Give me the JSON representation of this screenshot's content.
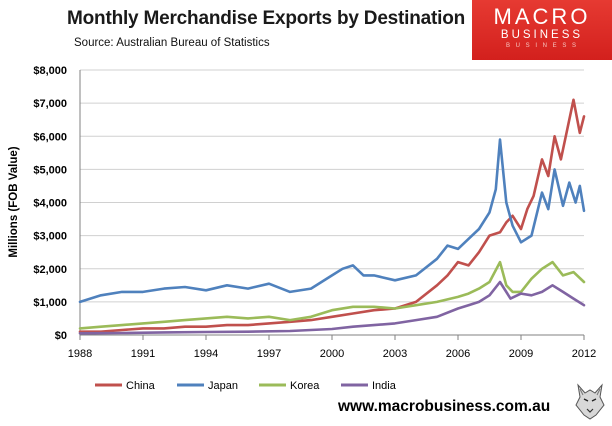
{
  "branding": {
    "logo_main": "MACRO",
    "logo_sub": "BUSINESS",
    "logo_tagline": "B U S I N E S S",
    "website": "www.macrobusiness.com.au",
    "logo_color": "#d9261f"
  },
  "chart_data": {
    "type": "line",
    "title": "Monthly Merchandise Exports by Destination",
    "subtitle": "Source:  Australian Bureau of Statistics",
    "xlabel": "",
    "ylabel": "Millions (FOB Value)",
    "xlim": [
      1988,
      2012
    ],
    "ylim": [
      0,
      8000
    ],
    "x_ticks": [
      1988,
      1991,
      1994,
      1997,
      2000,
      2003,
      2006,
      2009,
      2012
    ],
    "y_ticks": [
      0,
      1000,
      2000,
      3000,
      4000,
      5000,
      6000,
      7000,
      8000
    ],
    "y_tick_labels": [
      "$0",
      "$1,000",
      "$2,000",
      "$3,000",
      "$4,000",
      "$5,000",
      "$6,000",
      "$7,000",
      "$8,000"
    ],
    "grid": "horizontal",
    "legend_position": "bottom",
    "series": [
      {
        "name": "China",
        "color": "#c0504d",
        "x": [
          1988.0,
          1989.0,
          1990.0,
          1991.0,
          1992.0,
          1993.0,
          1994.0,
          1995.0,
          1996.0,
          1997.0,
          1998.0,
          1999.0,
          2000.0,
          2001.0,
          2002.0,
          2003.0,
          2004.0,
          2005.0,
          2005.5,
          2006.0,
          2006.5,
          2007.0,
          2007.5,
          2008.0,
          2008.3,
          2008.6,
          2009.0,
          2009.3,
          2009.6,
          2010.0,
          2010.3,
          2010.6,
          2010.9,
          2011.2,
          2011.5,
          2011.8,
          2012.0
        ],
        "y": [
          100,
          100,
          150,
          200,
          200,
          250,
          250,
          300,
          300,
          350,
          400,
          450,
          550,
          650,
          750,
          800,
          1000,
          1500,
          1800,
          2200,
          2100,
          2500,
          3000,
          3100,
          3400,
          3600,
          3200,
          3800,
          4200,
          5300,
          4800,
          6000,
          5300,
          6200,
          7100,
          6100,
          6600
        ]
      },
      {
        "name": "Japan",
        "color": "#4f81bd",
        "x": [
          1988.0,
          1989.0,
          1990.0,
          1991.0,
          1992.0,
          1993.0,
          1994.0,
          1995.0,
          1996.0,
          1997.0,
          1998.0,
          1999.0,
          1999.5,
          2000.0,
          2000.5,
          2001.0,
          2001.5,
          2002.0,
          2003.0,
          2004.0,
          2005.0,
          2005.5,
          2006.0,
          2006.5,
          2007.0,
          2007.5,
          2007.8,
          2008.0,
          2008.3,
          2008.6,
          2009.0,
          2009.5,
          2010.0,
          2010.3,
          2010.6,
          2011.0,
          2011.3,
          2011.6,
          2011.8,
          2012.0
        ],
        "y": [
          1000,
          1200,
          1300,
          1300,
          1400,
          1450,
          1350,
          1500,
          1400,
          1550,
          1300,
          1400,
          1600,
          1800,
          2000,
          2100,
          1800,
          1800,
          1650,
          1800,
          2300,
          2700,
          2600,
          2900,
          3200,
          3700,
          4400,
          5900,
          4000,
          3300,
          2800,
          3000,
          4300,
          3800,
          5000,
          3900,
          4600,
          4000,
          4500,
          3750
        ]
      },
      {
        "name": "Korea",
        "color": "#9bbb59",
        "x": [
          1988.0,
          1989.0,
          1990.0,
          1991.0,
          1992.0,
          1993.0,
          1994.0,
          1995.0,
          1996.0,
          1997.0,
          1998.0,
          1999.0,
          2000.0,
          2001.0,
          2002.0,
          2003.0,
          2004.0,
          2005.0,
          2006.0,
          2006.5,
          2007.0,
          2007.5,
          2008.0,
          2008.3,
          2008.6,
          2009.0,
          2009.5,
          2010.0,
          2010.5,
          2011.0,
          2011.5,
          2012.0
        ],
        "y": [
          200,
          250,
          300,
          350,
          400,
          450,
          500,
          550,
          500,
          550,
          450,
          550,
          750,
          850,
          850,
          800,
          900,
          1000,
          1150,
          1250,
          1400,
          1600,
          2200,
          1500,
          1300,
          1300,
          1700,
          2000,
          2200,
          1800,
          1900,
          1600
        ]
      },
      {
        "name": "India",
        "color": "#8064a2",
        "x": [
          1988.0,
          1990.0,
          1992.0,
          1994.0,
          1996.0,
          1998.0,
          2000.0,
          2001.0,
          2002.0,
          2003.0,
          2004.0,
          2005.0,
          2006.0,
          2006.5,
          2007.0,
          2007.5,
          2008.0,
          2008.5,
          2009.0,
          2009.5,
          2010.0,
          2010.5,
          2011.0,
          2011.5,
          2012.0
        ],
        "y": [
          50,
          60,
          80,
          90,
          100,
          120,
          180,
          250,
          300,
          350,
          450,
          550,
          800,
          900,
          1000,
          1200,
          1600,
          1100,
          1250,
          1200,
          1300,
          1500,
          1300,
          1100,
          900
        ]
      }
    ]
  }
}
